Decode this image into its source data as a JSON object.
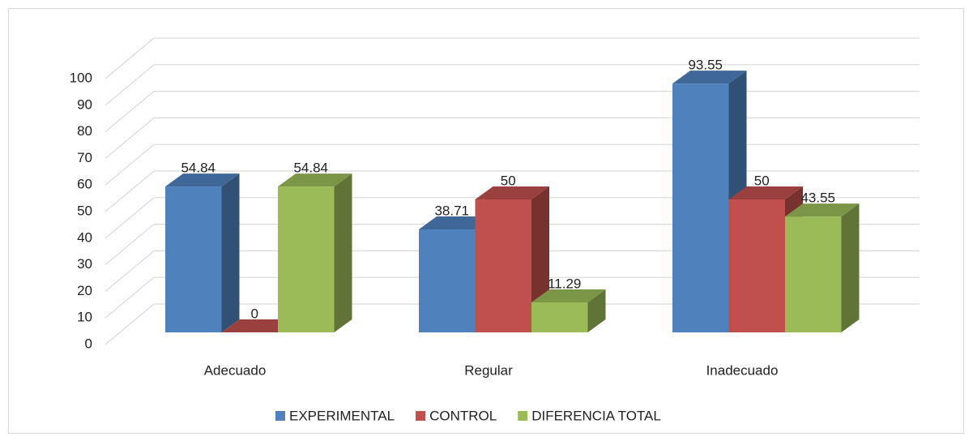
{
  "chart_data": {
    "type": "bar3d",
    "categories": [
      "Adecuado",
      "Regular",
      "Inadecuado"
    ],
    "series": [
      {
        "name": "EXPERIMENTAL",
        "color": "#4f81bd",
        "values": [
          54.84,
          38.71,
          93.55
        ]
      },
      {
        "name": "CONTROL",
        "color": "#c0504d",
        "values": [
          0,
          50,
          50
        ]
      },
      {
        "name": "DIFERENCIA TOTAL",
        "color": "#9bbb59",
        "values": [
          54.84,
          11.29,
          43.55
        ]
      }
    ],
    "ylim": [
      0,
      100
    ],
    "yticks": [
      0,
      10,
      20,
      30,
      40,
      50,
      60,
      70,
      80,
      90,
      100
    ],
    "grid": true,
    "legend": "bottom"
  }
}
